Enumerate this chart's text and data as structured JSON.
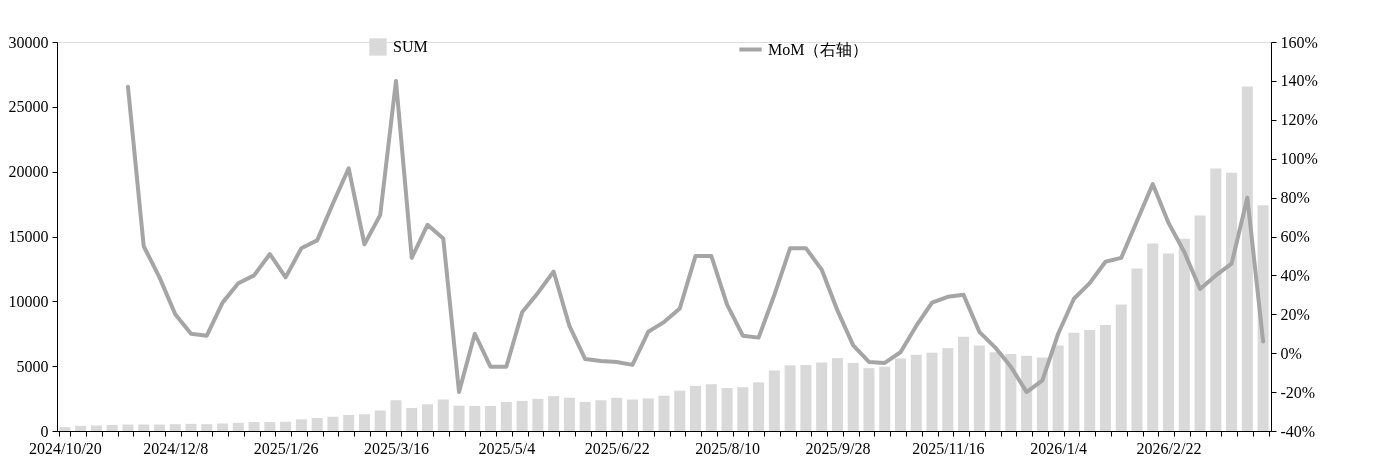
{
  "chart_data": {
    "type": "bar",
    "categories": [
      "2024/10/20",
      null,
      null,
      null,
      null,
      null,
      null,
      "2024/12/8",
      null,
      null,
      null,
      null,
      null,
      null,
      "2025/1/26",
      null,
      null,
      null,
      null,
      null,
      null,
      "2025/3/16",
      null,
      null,
      null,
      null,
      null,
      null,
      "2025/5/4",
      null,
      null,
      null,
      null,
      null,
      null,
      "2025/6/22",
      null,
      null,
      null,
      null,
      null,
      null,
      "2025/8/10",
      null,
      null,
      null,
      null,
      null,
      null,
      "2025/9/28",
      null,
      null,
      null,
      null,
      null,
      null,
      "2025/11/16",
      null,
      null,
      null,
      null,
      null,
      null,
      "2026/1/4",
      null,
      null,
      null,
      null,
      null,
      null,
      "2026/2/22",
      null,
      null,
      null,
      null,
      null,
      null
    ],
    "series": [
      {
        "name": "SUM",
        "color": "#d9d9d9",
        "values": [
          300,
          400,
          420,
          470,
          500,
          500,
          500,
          530,
          550,
          530,
          580,
          630,
          690,
          690,
          710,
          900,
          1000,
          1100,
          1240,
          1290,
          1580,
          2370,
          1770,
          2060,
          2430,
          1950,
          1930,
          1930,
          2240,
          2320,
          2480,
          2690,
          2560,
          2240,
          2370,
          2560,
          2430,
          2510,
          2720,
          3110,
          3480,
          3610,
          3320,
          3380,
          3750,
          4670,
          5070,
          5090,
          5280,
          5620,
          5250,
          4850,
          4960,
          5590,
          5880,
          6040,
          6390,
          7260,
          6600,
          6070,
          5940,
          5800,
          5670,
          6600,
          7570,
          7780,
          8180,
          9760,
          12530,
          14460,
          13690,
          14830,
          16620,
          20240,
          19920,
          26570,
          17410
        ]
      },
      {
        "name": "MoM（右轴）",
        "type": "line",
        "axis": "y2",
        "color": "#a5a5a5",
        "values": [
          null,
          null,
          null,
          null,
          137,
          55,
          39,
          20,
          10,
          9,
          26,
          36,
          40,
          51,
          39,
          54,
          58,
          77,
          95,
          56,
          71,
          140,
          49,
          66,
          59,
          -20,
          10,
          -7,
          -7,
          21,
          31,
          42,
          14,
          -3,
          -4,
          -4.5,
          -6,
          11,
          16,
          23,
          50,
          50,
          25,
          9,
          8,
          30,
          54,
          54,
          43,
          22,
          4,
          -4.5,
          -5,
          0.5,
          14,
          26,
          29,
          30,
          11,
          3,
          -7,
          -20,
          -14,
          10,
          28,
          36,
          47,
          49,
          68,
          87,
          67,
          52,
          33,
          40,
          46,
          80,
          6
        ]
      }
    ],
    "ylim": [
      0,
      30000
    ],
    "yticks": [
      0,
      5000,
      10000,
      15000,
      20000,
      25000,
      30000
    ],
    "y2lim": [
      -40,
      160
    ],
    "y2ticks": [
      {
        "value": -40,
        "label": "-40%"
      },
      {
        "value": -20,
        "label": "-20%"
      },
      {
        "value": 0,
        "label": "0%"
      },
      {
        "value": 20,
        "label": "20%"
      },
      {
        "value": 40,
        "label": "40%"
      },
      {
        "value": 60,
        "label": "60%"
      },
      {
        "value": 80,
        "label": "80%"
      },
      {
        "value": 100,
        "label": "100%"
      },
      {
        "value": 120,
        "label": "120%"
      },
      {
        "value": 140,
        "label": "140%"
      },
      {
        "value": 160,
        "label": "160%"
      }
    ],
    "legend": "top",
    "grid": false
  }
}
